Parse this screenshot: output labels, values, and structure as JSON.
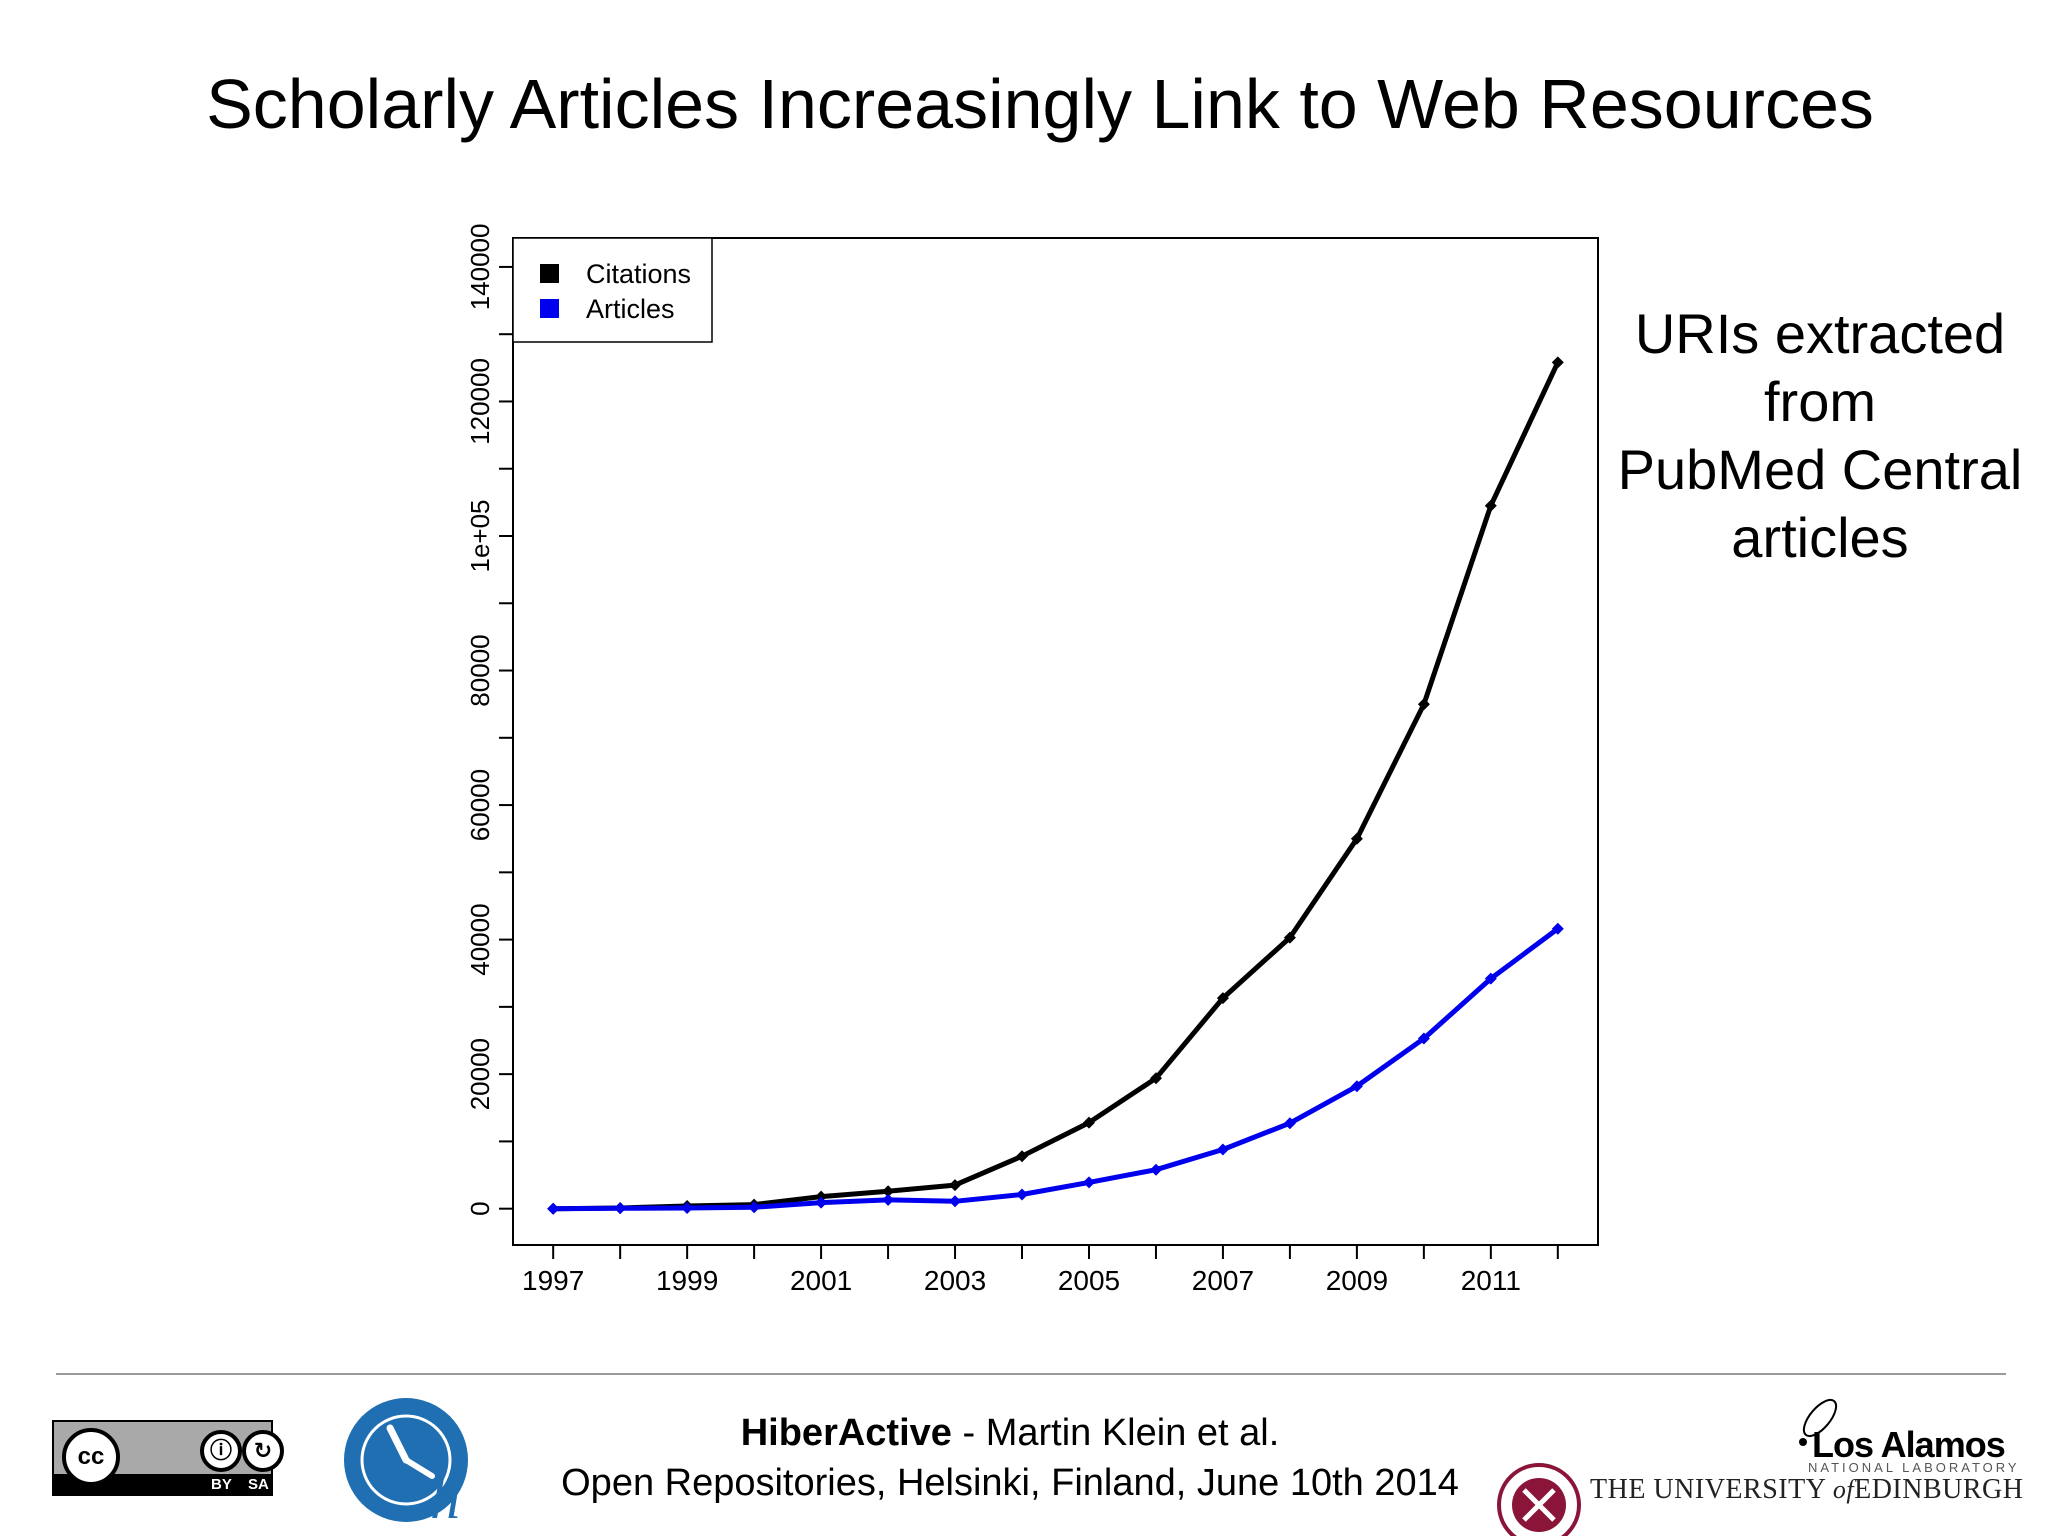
{
  "slide": {
    "title": "Scholarly Articles Increasingly Link to Web Resources",
    "side_note": [
      "URIs extracted",
      "from",
      "PubMed Central",
      "articles"
    ]
  },
  "chart_data": {
    "type": "line",
    "title": "",
    "xlabel": "",
    "ylabel": "",
    "x": [
      1997,
      1998,
      1999,
      2000,
      2001,
      2002,
      2003,
      2004,
      2005,
      2006,
      2007,
      2008,
      2009,
      2010,
      2011,
      2012
    ],
    "x_ticks": [
      1997,
      1998,
      1999,
      2000,
      2001,
      2002,
      2003,
      2004,
      2005,
      2006,
      2007,
      2008,
      2009,
      2010,
      2011,
      2012
    ],
    "x_tick_labels": [
      "1997",
      "",
      "1999",
      "",
      "2001",
      "",
      "2003",
      "",
      "2005",
      "",
      "2007",
      "",
      "2009",
      "",
      "2011",
      ""
    ],
    "xlim": [
      1996.4,
      2012.6
    ],
    "ylim": [
      -5400,
      144300
    ],
    "y_ticks": [
      0,
      10000,
      20000,
      30000,
      40000,
      50000,
      60000,
      70000,
      80000,
      90000,
      100000,
      110000,
      120000,
      130000,
      140000
    ],
    "y_tick_labels": [
      "0",
      "",
      "20000",
      "",
      "40000",
      "",
      "60000",
      "",
      "80000",
      "",
      "1e+05",
      "",
      "120000",
      "",
      "140000"
    ],
    "legend_position": "top-left",
    "grid": false,
    "series": [
      {
        "name": "Citations",
        "color": "#000000",
        "values": [
          0,
          100,
          400,
          600,
          1800,
          2600,
          3500,
          7800,
          12800,
          19400,
          31300,
          40300,
          55000,
          75000,
          104500,
          125800
        ]
      },
      {
        "name": "Articles",
        "color": "#0000ee",
        "values": [
          0,
          50,
          100,
          200,
          900,
          1300,
          1100,
          2100,
          3900,
          5800,
          8800,
          12700,
          18200,
          25300,
          34200,
          41600
        ]
      }
    ]
  },
  "footer": {
    "project": "HiberActive",
    "authors": " - Martin Klein et al.",
    "event": "Open Repositories,  Helsinki, Finland, June 10th 2014",
    "cc_label": "cc",
    "cc_by": "BY",
    "cc_sa": "SA",
    "lanl_name": "Los Alamos",
    "lanl_sub": "NATIONAL LABORATORY",
    "edinburgh_pre": "THE UNIVERSITY ",
    "edinburgh_of": "of",
    "edinburgh_post": "EDINBURGH",
    "logo_letter": "h"
  }
}
